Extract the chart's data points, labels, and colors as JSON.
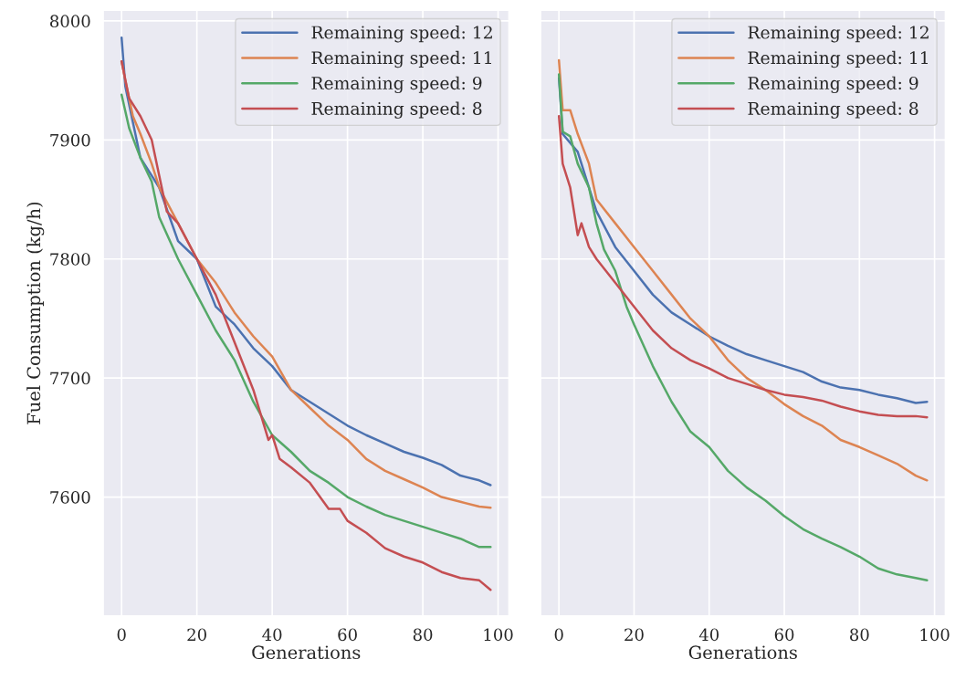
{
  "chart_data": [
    {
      "type": "line",
      "xlabel": "Generations",
      "ylabel": "Fuel Consumption (kg/h)",
      "xlim": [
        -4.9,
        102.9
      ],
      "ylim": [
        7500,
        8009
      ],
      "xticks": [
        0,
        20,
        40,
        60,
        80,
        100
      ],
      "yticks": [
        7600,
        7700,
        7800,
        7900,
        8000
      ],
      "grid": true,
      "legend": "top right",
      "series": [
        {
          "name": "Remaining speed: 12",
          "color": "#4c72b0",
          "x": [
            0,
            1,
            5,
            10,
            15,
            20,
            25,
            30,
            35,
            40,
            45,
            50,
            55,
            60,
            65,
            70,
            75,
            80,
            85,
            90,
            95,
            98
          ],
          "values": [
            7986,
            7945,
            7885,
            7860,
            7815,
            7800,
            7760,
            7745,
            7725,
            7710,
            7690,
            7680,
            7670,
            7660,
            7652,
            7645,
            7638,
            7633,
            7627,
            7618,
            7614,
            7610
          ]
        },
        {
          "name": "Remaining speed: 11",
          "color": "#dd8452",
          "x": [
            0,
            1,
            3,
            5,
            8,
            10,
            15,
            20,
            25,
            30,
            35,
            40,
            45,
            50,
            55,
            60,
            65,
            70,
            75,
            80,
            85,
            90,
            95,
            98
          ],
          "values": [
            7966,
            7950,
            7920,
            7905,
            7880,
            7860,
            7830,
            7800,
            7780,
            7755,
            7735,
            7718,
            7690,
            7675,
            7660,
            7648,
            7632,
            7622,
            7615,
            7608,
            7600,
            7596,
            7592,
            7591
          ]
        },
        {
          "name": "Remaining speed: 9",
          "color": "#55a868",
          "x": [
            0,
            2,
            5,
            8,
            10,
            15,
            20,
            25,
            30,
            35,
            40,
            45,
            50,
            55,
            60,
            65,
            70,
            75,
            80,
            85,
            90,
            95,
            98
          ],
          "values": [
            7938,
            7910,
            7885,
            7865,
            7835,
            7800,
            7770,
            7740,
            7715,
            7680,
            7652,
            7638,
            7622,
            7612,
            7600,
            7592,
            7585,
            7580,
            7575,
            7570,
            7565,
            7558,
            7558
          ]
        },
        {
          "name": "Remaining speed: 8",
          "color": "#c44e52",
          "x": [
            0,
            2,
            5,
            8,
            10,
            12,
            15,
            20,
            25,
            30,
            35,
            39,
            40,
            42,
            45,
            50,
            55,
            58,
            60,
            65,
            70,
            75,
            80,
            85,
            90,
            95,
            98
          ],
          "values": [
            7966,
            7935,
            7920,
            7900,
            7870,
            7840,
            7830,
            7800,
            7770,
            7730,
            7690,
            7648,
            7652,
            7632,
            7625,
            7612,
            7590,
            7590,
            7580,
            7570,
            7557,
            7550,
            7545,
            7537,
            7532,
            7530,
            7522
          ]
        }
      ]
    },
    {
      "type": "line",
      "xlabel": "Generations",
      "xlim": [
        -4.9,
        102.9
      ],
      "ylim": [
        7500,
        8009
      ],
      "xticks": [
        0,
        20,
        40,
        60,
        80,
        100
      ],
      "yticks": [
        7600,
        7700,
        7800,
        7900,
        8000
      ],
      "grid": true,
      "legend": "top right",
      "tick_labels": "x",
      "series": [
        {
          "name": "Remaining speed: 12",
          "color": "#4c72b0",
          "x": [
            0,
            1,
            5,
            10,
            15,
            20,
            25,
            30,
            35,
            40,
            45,
            50,
            55,
            60,
            65,
            70,
            75,
            80,
            85,
            90,
            95,
            98
          ],
          "values": [
            7952,
            7905,
            7890,
            7840,
            7810,
            7790,
            7770,
            7755,
            7745,
            7735,
            7727,
            7720,
            7715,
            7710,
            7705,
            7697,
            7692,
            7690,
            7686,
            7683,
            7679,
            7680
          ]
        },
        {
          "name": "Remaining speed: 11",
          "color": "#dd8452",
          "x": [
            0,
            1,
            3,
            5,
            8,
            10,
            15,
            20,
            25,
            30,
            35,
            40,
            45,
            50,
            55,
            60,
            65,
            70,
            75,
            80,
            85,
            90,
            95,
            98
          ],
          "values": [
            7967,
            7925,
            7925,
            7905,
            7880,
            7850,
            7830,
            7810,
            7790,
            7770,
            7750,
            7735,
            7715,
            7700,
            7690,
            7678,
            7668,
            7660,
            7648,
            7642,
            7635,
            7628,
            7618,
            7614
          ]
        },
        {
          "name": "Remaining speed: 9",
          "color": "#55a868",
          "x": [
            0,
            1,
            3,
            5,
            8,
            10,
            12,
            15,
            18,
            20,
            25,
            30,
            35,
            40,
            45,
            50,
            55,
            60,
            65,
            70,
            75,
            80,
            85,
            90,
            95,
            98
          ],
          "values": [
            7955,
            7907,
            7903,
            7880,
            7860,
            7830,
            7808,
            7790,
            7760,
            7745,
            7710,
            7680,
            7655,
            7642,
            7622,
            7608,
            7597,
            7584,
            7573,
            7565,
            7558,
            7550,
            7540,
            7535,
            7532,
            7530
          ]
        },
        {
          "name": "Remaining speed: 8",
          "color": "#c44e52",
          "x": [
            0,
            1,
            3,
            5,
            6,
            8,
            10,
            15,
            20,
            25,
            30,
            35,
            40,
            45,
            50,
            55,
            60,
            65,
            70,
            75,
            80,
            85,
            90,
            95,
            98
          ],
          "values": [
            7920,
            7880,
            7860,
            7820,
            7830,
            7810,
            7800,
            7780,
            7760,
            7740,
            7725,
            7715,
            7708,
            7700,
            7695,
            7690,
            7686,
            7684,
            7681,
            7676,
            7672,
            7669,
            7668,
            7668,
            7667
          ]
        }
      ]
    }
  ]
}
